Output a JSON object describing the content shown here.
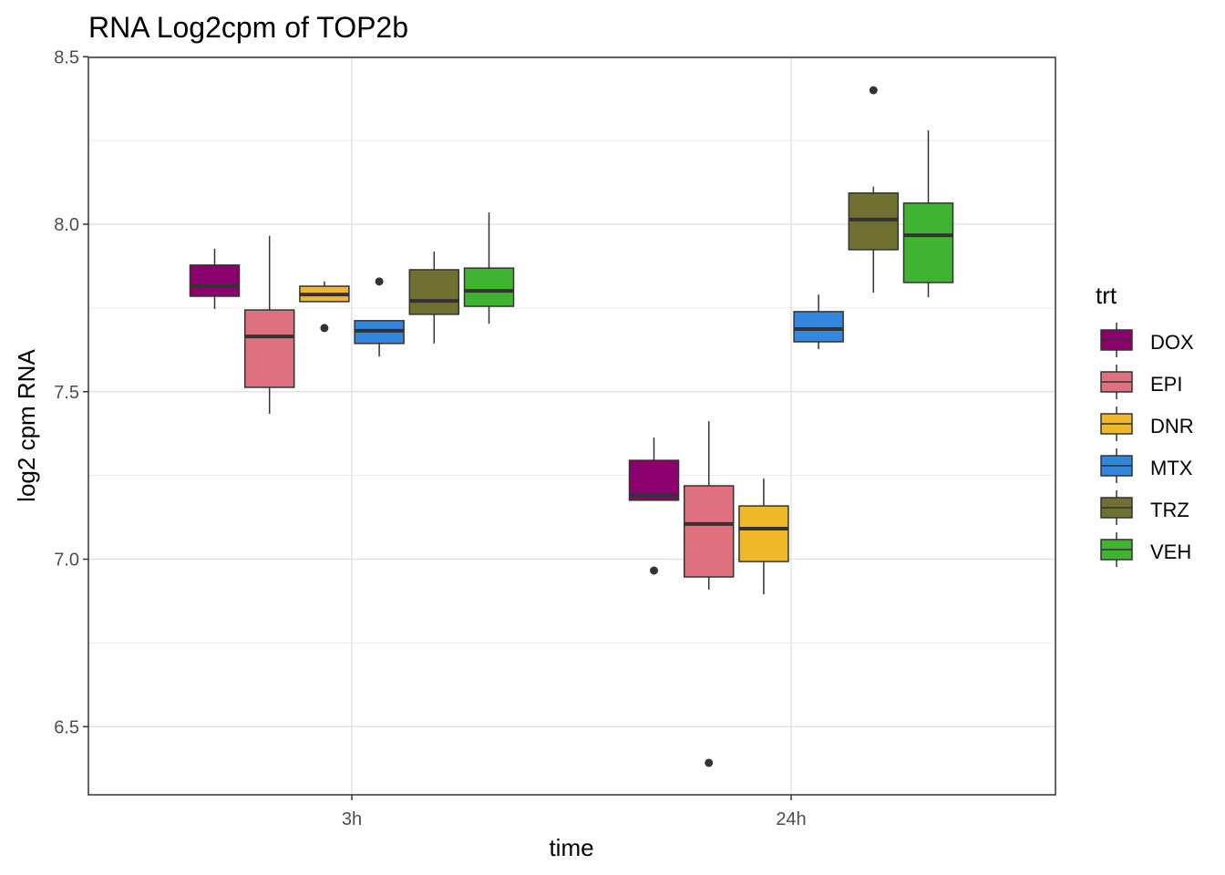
{
  "chart_data": {
    "type": "boxplot",
    "title": "RNA Log2cpm of TOP2b",
    "xlabel": "time",
    "ylabel": "log2 cpm RNA",
    "categories": [
      "3h",
      "24h"
    ],
    "yticks": [
      "6.5",
      "7.0",
      "7.5",
      "8.0",
      "8.5"
    ],
    "ytick_values": [
      6.5,
      7.0,
      7.5,
      8.0,
      8.5
    ],
    "ylim": [
      6.296,
      8.5
    ],
    "grid": true,
    "legend": {
      "title": "trt",
      "position": "right"
    },
    "series": [
      {
        "name": "DOX",
        "color": "#8B006D",
        "boxes": [
          {
            "min": 7.747,
            "q1": 7.785,
            "median": 7.815,
            "q3": 7.878,
            "max": 7.927,
            "outliers": []
          },
          {
            "min": 7.176,
            "q1": 7.176,
            "median": 7.189,
            "q3": 7.295,
            "max": 7.363,
            "outliers": [
              6.966
            ]
          }
        ]
      },
      {
        "name": "EPI",
        "color": "#DF707E",
        "boxes": [
          {
            "min": 7.434,
            "q1": 7.513,
            "median": 7.665,
            "q3": 7.744,
            "max": 7.965,
            "outliers": []
          },
          {
            "min": 6.909,
            "q1": 6.947,
            "median": 7.105,
            "q3": 7.219,
            "max": 7.412,
            "outliers": [
              6.392
            ]
          }
        ]
      },
      {
        "name": "DNR",
        "color": "#F1B72B",
        "boxes": [
          {
            "min": 7.769,
            "q1": 7.769,
            "median": 7.79,
            "q3": 7.815,
            "max": 7.829,
            "outliers": [
              7.69
            ]
          },
          {
            "min": 6.895,
            "q1": 6.993,
            "median": 7.091,
            "q3": 7.159,
            "max": 7.241,
            "outliers": []
          }
        ]
      },
      {
        "name": "MTX",
        "color": "#3386DD",
        "boxes": [
          {
            "min": 7.605,
            "q1": 7.644,
            "median": 7.682,
            "q3": 7.712,
            "max": 7.714,
            "outliers": [
              7.829
            ]
          },
          {
            "min": 7.627,
            "q1": 7.649,
            "median": 7.687,
            "q3": 7.739,
            "max": 7.79,
            "outliers": []
          }
        ]
      },
      {
        "name": "TRZ",
        "color": "#707031",
        "boxes": [
          {
            "min": 7.644,
            "q1": 7.731,
            "median": 7.771,
            "q3": 7.864,
            "max": 7.918,
            "outliers": []
          },
          {
            "min": 7.796,
            "q1": 7.924,
            "median": 8.014,
            "q3": 8.093,
            "max": 8.112,
            "outliers": [
              8.4
            ]
          }
        ]
      },
      {
        "name": "VEH",
        "color": "#41B333",
        "boxes": [
          {
            "min": 7.703,
            "q1": 7.755,
            "median": 7.801,
            "q3": 7.869,
            "max": 8.035,
            "outliers": []
          },
          {
            "min": 7.782,
            "q1": 7.826,
            "median": 7.967,
            "q3": 8.063,
            "max": 8.28,
            "outliers": []
          }
        ]
      }
    ]
  }
}
